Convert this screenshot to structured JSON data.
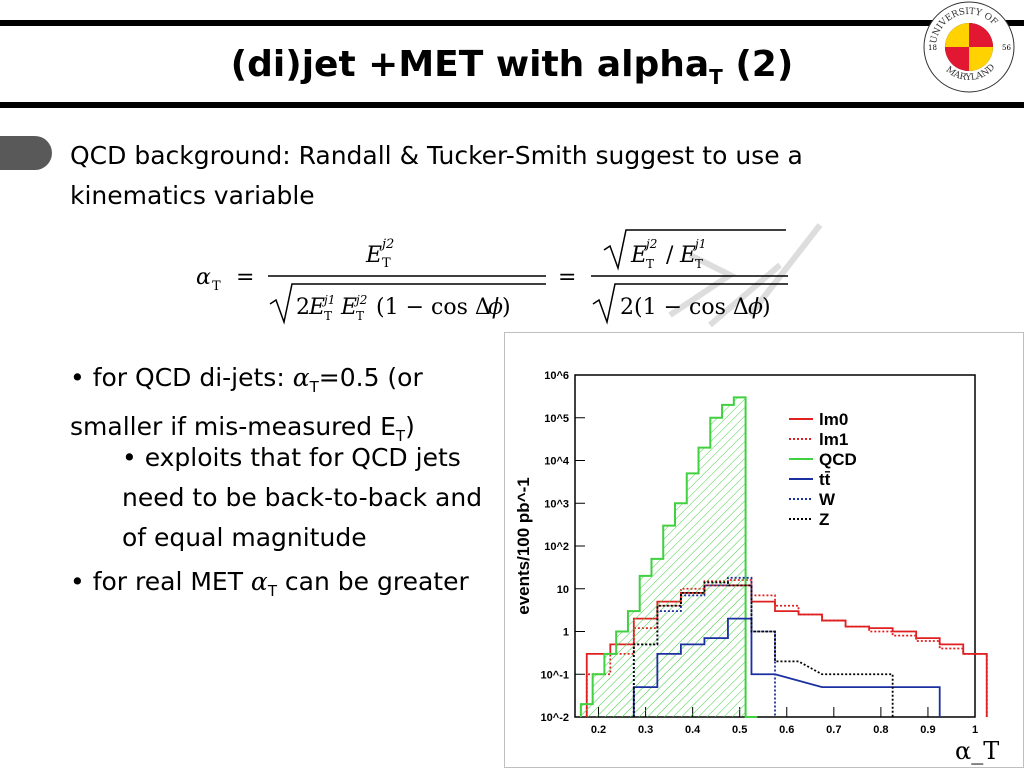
{
  "slide": {
    "title_main": "(di)jet +MET with alpha",
    "title_sub": "T",
    "title_end": " (2)",
    "logo": {
      "ring_top": "UNIVERSITY OF",
      "ring_bottom": "MARYLAND",
      "year_left": "18",
      "year_right": "56"
    },
    "intro": "QCD background: Randall & Tucker-Smith suggest to use a kinematics variable",
    "formula": {
      "lhs": "α",
      "lhs_sub": "T",
      "eq": "=",
      "num1": "E",
      "den1": "√(2E E (1 − cos Δφ))",
      "num2": "√(E / E )",
      "den2": "√(2(1 − cos Δφ))"
    },
    "bullet1": {
      "a": "• for QCD di-jets: ",
      "alpha": "α",
      "sub": "T",
      "b": "=0.5 (or smaller if mis-measured E",
      "sub2": "T",
      "c": ")"
    },
    "bullet2": "• exploits that for QCD jets need to be back-to-back and of equal magnitude",
    "bullet3": {
      "a": "• for real MET ",
      "alpha": "α",
      "sub": "T",
      "b": " can be greater"
    }
  },
  "chart_data": {
    "type": "line",
    "title": "",
    "xlabel": "α_T",
    "ylabel": "events/100 pb^-1",
    "xlim": [
      0.15,
      1.0
    ],
    "ylim_log10": [
      -2,
      6
    ],
    "yscale": "log",
    "x_ticks": [
      "0.2",
      "0.3",
      "0.4",
      "0.5",
      "0.6",
      "0.7",
      "0.8",
      "0.9",
      "1"
    ],
    "y_ticks": [
      "10^-2",
      "10^-1",
      "1",
      "10",
      "10^2",
      "10^3",
      "10^4",
      "10^5",
      "10^6"
    ],
    "legend_position": "top-right",
    "series": [
      {
        "name": "lm0",
        "color": "#e02020",
        "style": "solid",
        "x": [
          0.2,
          0.25,
          0.3,
          0.35,
          0.4,
          0.45,
          0.5,
          0.55,
          0.6,
          0.65,
          0.7,
          0.75,
          0.8,
          0.85,
          0.9,
          0.95,
          1.0
        ],
        "y": [
          0.3,
          0.5,
          2,
          5,
          8,
          12,
          12,
          5,
          3,
          2.5,
          1.8,
          1.3,
          1.2,
          1,
          0.7,
          0.5,
          0.3
        ]
      },
      {
        "name": "lm1",
        "color": "#e02020",
        "style": "dotted",
        "x": [
          0.2,
          0.25,
          0.3,
          0.35,
          0.4,
          0.45,
          0.5,
          0.55,
          0.6,
          0.65,
          0.7,
          0.75,
          0.8,
          0.85,
          0.9,
          0.95,
          1.0
        ],
        "y": [
          0.1,
          0.3,
          1.2,
          4,
          10,
          15,
          16,
          7,
          4,
          2.5,
          1.8,
          1.3,
          1,
          0.8,
          0.6,
          0.4,
          0.3
        ]
      },
      {
        "name": "QCD",
        "color": "#40d040",
        "style": "hatched",
        "x": [
          0.175,
          0.2,
          0.225,
          0.25,
          0.275,
          0.3,
          0.325,
          0.35,
          0.375,
          0.4,
          0.425,
          0.45,
          0.475,
          0.5,
          0.525
        ],
        "y": [
          0.02,
          0.1,
          0.3,
          1,
          3,
          20,
          50,
          300,
          1000,
          5000,
          20000,
          100000,
          200000,
          300000,
          0.01
        ]
      },
      {
        "name": "tt̄",
        "color": "#1a2fa0",
        "style": "solid",
        "x": [
          0.3,
          0.35,
          0.4,
          0.45,
          0.5,
          0.55,
          0.7,
          0.9
        ],
        "y": [
          0.05,
          0.3,
          0.5,
          0.7,
          2,
          0.1,
          0.05,
          0.05
        ]
      },
      {
        "name": "W",
        "color": "#1a2fa0",
        "style": "dotted",
        "x": [
          0.3,
          0.35,
          0.4,
          0.45,
          0.5,
          0.55
        ],
        "y": [
          0.5,
          3,
          7,
          12,
          18,
          1
        ]
      },
      {
        "name": "Z",
        "color": "#000000",
        "style": "dotted",
        "x": [
          0.3,
          0.35,
          0.4,
          0.45,
          0.5,
          0.55,
          0.6,
          0.7,
          0.8
        ],
        "y": [
          0.5,
          4,
          8,
          14,
          12,
          1,
          0.2,
          0.1,
          0.1
        ]
      }
    ]
  }
}
